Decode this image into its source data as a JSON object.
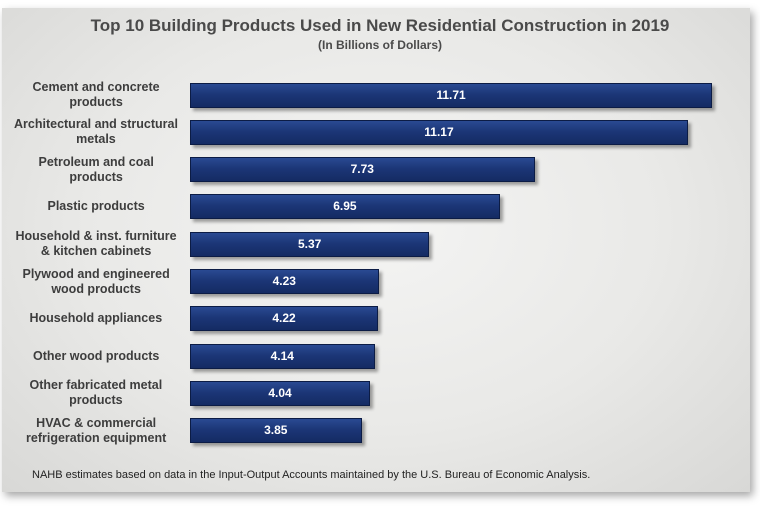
{
  "chart_data": {
    "type": "bar",
    "orientation": "horizontal",
    "title": "Top 10 Building Products Used in New Residential Construction in 2019",
    "subtitle": "(In Billions of Dollars)",
    "categories": [
      "Cement and concrete\nproducts",
      "Architectural and structural\nmetals",
      "Petroleum and coal\nproducts",
      "Plastic products",
      "Household & inst. furniture\n& kitchen cabinets",
      "Plywood and engineered\nwood products",
      "Household appliances",
      "Other wood products",
      "Other fabricated metal\nproducts",
      "HVAC & commercial\nrefrigeration equipment"
    ],
    "values": [
      11.71,
      11.17,
      7.73,
      6.95,
      5.37,
      4.23,
      4.22,
      4.14,
      4.04,
      3.85
    ],
    "value_labels": [
      "11.71",
      "11.17",
      "7.73",
      "6.95",
      "5.37",
      "4.23",
      "4.22",
      "4.14",
      "4.04",
      "3.85"
    ],
    "xlim": [
      0,
      11.71
    ],
    "grid": false,
    "bar_color": "#1c3677",
    "footnote": "NAHB estimates based on data in the Input-Output Accounts maintained by the U.S. Bureau of Economic Analysis."
  }
}
